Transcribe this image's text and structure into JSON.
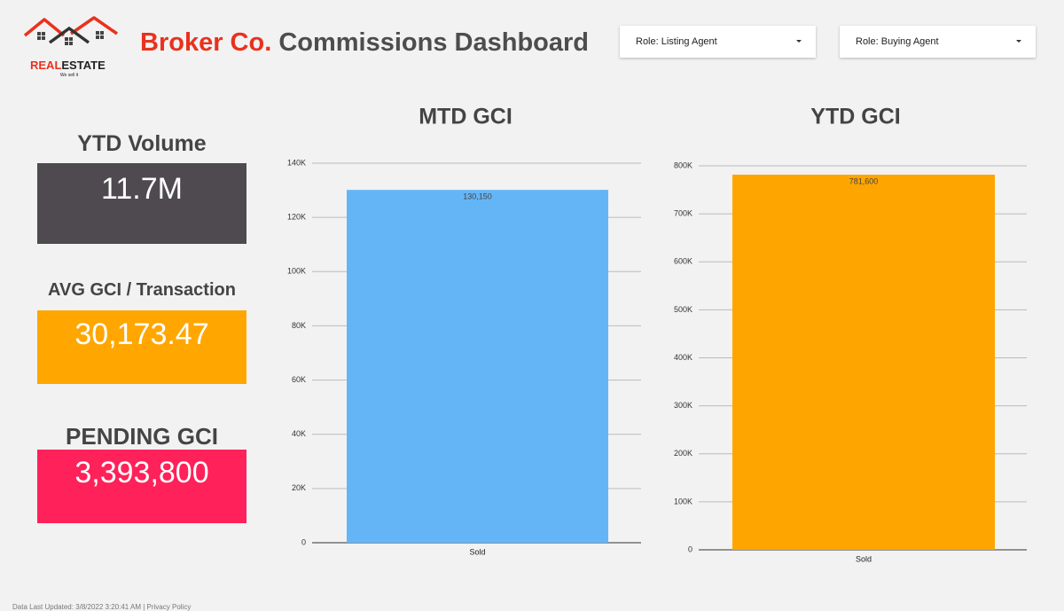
{
  "header": {
    "logo": {
      "word1": "REAL",
      "word2": "ESTATE",
      "tagline": "We sell it"
    },
    "title_brand": "Broker Co.",
    "title_rest": "Commissions Dashboard"
  },
  "filters": [
    "Role: Listing Agent",
    "Role: Buying Agent"
  ],
  "scorecards": [
    {
      "label": "YTD Volume",
      "value": "11.7M",
      "color": "#4f4a50"
    },
    {
      "label": "AVG GCI / Transaction",
      "value": "30,173.47",
      "color": "#ffa600"
    },
    {
      "label": "PENDING GCI",
      "value": "3,393,800",
      "color": "#ff2159"
    }
  ],
  "chart_data": [
    {
      "type": "bar",
      "title": "MTD GCI",
      "categories": [
        "Sold"
      ],
      "values": [
        130150
      ],
      "value_labels": [
        "130,150"
      ],
      "color": "#64b5f6",
      "ylim": [
        0,
        140000
      ],
      "yticks": [
        0,
        {
          "value": 20000,
          "label": "20K"
        },
        {
          "value": 40000,
          "label": "40K"
        },
        {
          "value": 60000,
          "label": "60K"
        },
        {
          "value": 80000,
          "label": "80K"
        },
        {
          "value": 100000,
          "label": "100K"
        },
        {
          "value": 120000,
          "label": "120K"
        },
        {
          "value": 140000,
          "label": "140K"
        }
      ],
      "grid": true
    },
    {
      "type": "bar",
      "title": "YTD GCI",
      "categories": [
        "Sold"
      ],
      "values": [
        781600
      ],
      "value_labels": [
        "781,600"
      ],
      "color": "#ffa500",
      "ylim": [
        0,
        800000
      ],
      "yticks": [
        0,
        {
          "value": 100000,
          "label": "100K"
        },
        {
          "value": 200000,
          "label": "200K"
        },
        {
          "value": 300000,
          "label": "300K"
        },
        {
          "value": 400000,
          "label": "400K"
        },
        {
          "value": 500000,
          "label": "500K"
        },
        {
          "value": 600000,
          "label": "600K"
        },
        {
          "value": 700000,
          "label": "700K"
        },
        {
          "value": 800000,
          "label": "800K"
        }
      ],
      "grid": true
    }
  ],
  "footer": {
    "updated": "Data Last Updated: 3/8/2022 3:20:41 AM",
    "privacy": "Privacy Policy"
  }
}
